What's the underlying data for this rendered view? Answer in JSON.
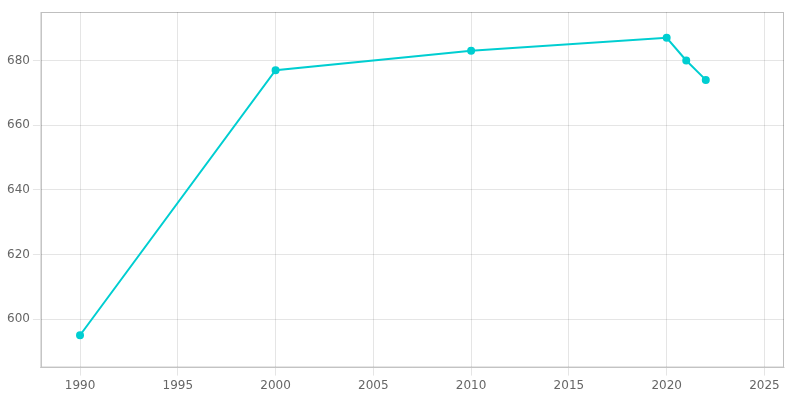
{
  "chart_data": {
    "type": "line",
    "x": [
      1990,
      2000,
      2010,
      2020,
      2021,
      2022
    ],
    "values": [
      595,
      677,
      683,
      687,
      680,
      674
    ],
    "color": "#00CED1",
    "marker": "circle",
    "xlim": [
      1988,
      2026
    ],
    "ylim": [
      585,
      695
    ],
    "xticks": [
      1990,
      1995,
      2000,
      2005,
      2010,
      2015,
      2020,
      2025
    ],
    "yticks": [
      600,
      620,
      640,
      660,
      680
    ],
    "grid": true
  }
}
